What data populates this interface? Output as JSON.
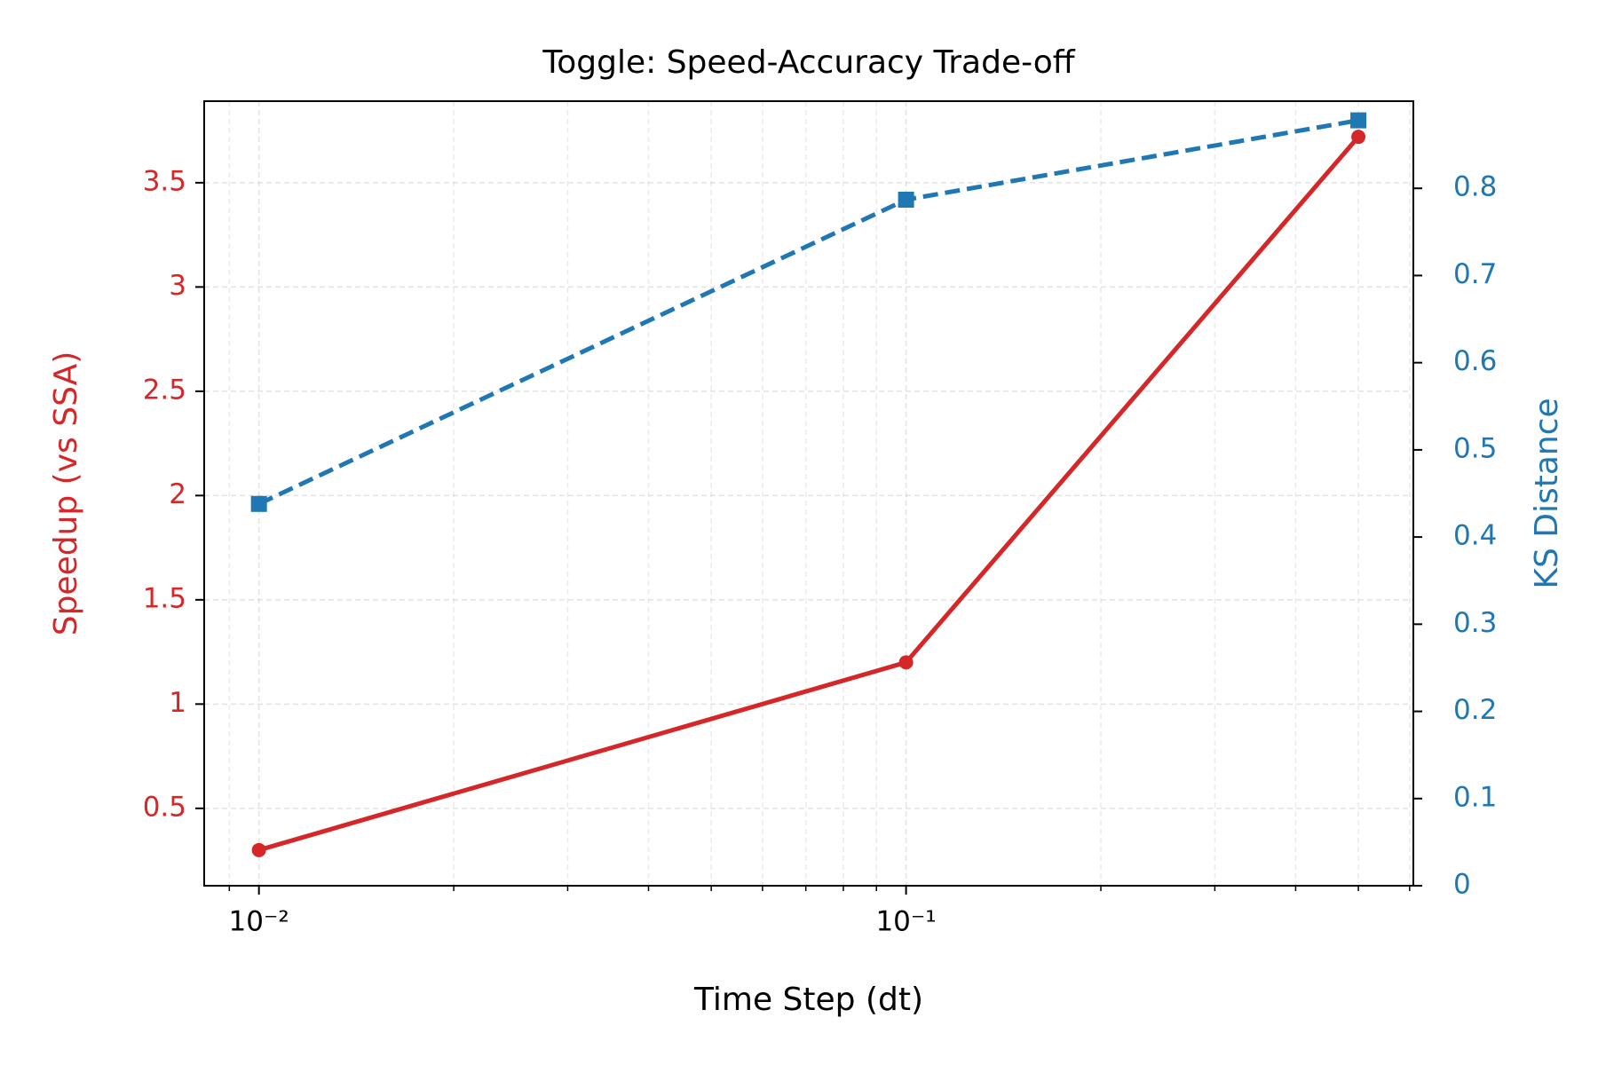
{
  "chart_data": {
    "type": "line",
    "title": "Toggle: Speed-Accuracy Trade-off",
    "x_label": "Time Step (dt)",
    "y_label": "Speedup (vs SSA)",
    "y2_label": "KS Distance",
    "x": [
      0.01,
      0.1,
      0.5
    ],
    "x_scale": "log",
    "xlim": [
      0.00823,
      0.608
    ],
    "xticks": [
      {
        "value": 0.01,
        "label": "10⁻²"
      },
      {
        "value": 0.1,
        "label": "10⁻¹"
      }
    ],
    "xminorticks": [
      0.009,
      0.02,
      0.03,
      0.04,
      0.05,
      0.06,
      0.07,
      0.08,
      0.09,
      0.2,
      0.3,
      0.4,
      0.5,
      0.6
    ],
    "ylim": [
      0.129,
      3.891
    ],
    "yticks": [
      0.5,
      1.0,
      1.5,
      2.0,
      2.5,
      3.0,
      3.5
    ],
    "y2lim": [
      0,
      0.9
    ],
    "y2ticks": [
      0.0,
      0.1,
      0.2,
      0.3,
      0.4,
      0.5,
      0.6,
      0.7,
      0.8
    ],
    "grid": true,
    "series": [
      {
        "name": "Speedup",
        "color": "#d62728",
        "marker": "circle",
        "dash": "solid",
        "values": [
          0.3,
          1.2,
          3.72
        ]
      },
      {
        "name": "KS Distance",
        "color": "#1f77b4",
        "marker": "square",
        "dash": "dashed",
        "axis": "y2",
        "values": [
          0.438,
          0.787,
          0.878
        ]
      }
    ]
  }
}
